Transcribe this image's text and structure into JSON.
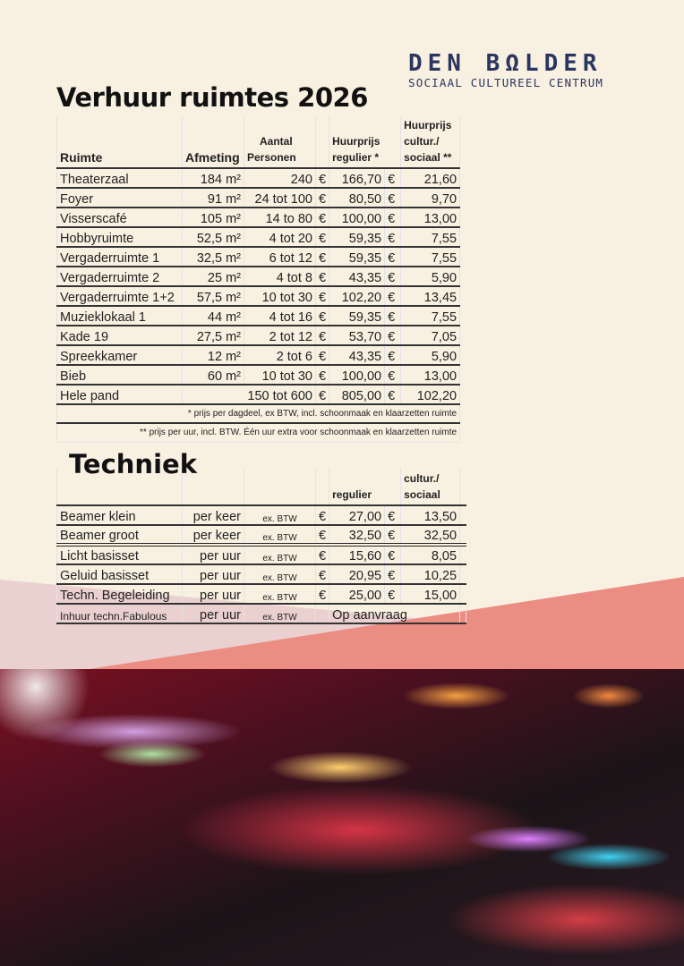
{
  "logo": {
    "name": "DEN BΩLDER",
    "tagline": "SOCIAAL CULTUREEL CENTRUM"
  },
  "title": "Verhuur ruimtes 2026",
  "rooms": {
    "headers": {
      "ruimte": "Ruimte",
      "afmeting": "Afmeting",
      "personen_1": "Aantal",
      "personen_2": "Personen",
      "regulier_1": "Huurprijs",
      "regulier_2": "regulier *",
      "sociaal_1": "Huurprijs",
      "sociaal_2": "cultur./",
      "sociaal_3": "sociaal **"
    },
    "currency": "€",
    "rows": [
      {
        "name": "Theaterzaal",
        "size": "184 m²",
        "persons": "240",
        "regular": "166,70",
        "social": "21,60"
      },
      {
        "name": "Foyer",
        "size": "91 m²",
        "persons": "24 tot 100",
        "regular": "80,50",
        "social": "9,70"
      },
      {
        "name": "Visserscafé",
        "size": "105 m²",
        "persons": "14 to 80",
        "regular": "100,00",
        "social": "13,00"
      },
      {
        "name": "Hobbyruimte",
        "size": "52,5 m²",
        "persons": "4 tot 20",
        "regular": "59,35",
        "social": "7,55"
      },
      {
        "name": "Vergaderruimte 1",
        "size": "32,5 m²",
        "persons": "6 tot 12",
        "regular": "59,35",
        "social": "7,55"
      },
      {
        "name": "Vergaderruimte 2",
        "size": "25 m²",
        "persons": "4 tot 8",
        "regular": "43,35",
        "social": "5,90"
      },
      {
        "name": "Vergaderruimte 1+2",
        "size": "57,5 m²",
        "persons": "10 tot 30",
        "regular": "102,20",
        "social": "13,45"
      },
      {
        "name": "Muzieklokaal 1",
        "size": "44 m²",
        "persons": "4 tot 16",
        "regular": "59,35",
        "social": "7,55"
      },
      {
        "name": "Kade 19",
        "size": "27,5 m²",
        "persons": "2 tot 12",
        "regular": "53,70",
        "social": "7,05"
      },
      {
        "name": "Spreekkamer",
        "size": "12 m²",
        "persons": "2 tot 6",
        "regular": "43,35",
        "social": "5,90"
      },
      {
        "name": "Bieb",
        "size": "60 m²",
        "persons": "10 tot 30",
        "regular": "100,00",
        "social": "13,00"
      },
      {
        "name": "Hele pand",
        "size": "",
        "persons": "150 tot 600",
        "regular": "805,00",
        "social": "102,20"
      }
    ],
    "note1": "* prijs per dagdeel, ex BTW, incl. schoonmaak en klaarzetten ruimte",
    "note2": "** prijs per uur, incl. BTW. Één uur extra voor schoonmaak en klaarzetten ruimte"
  },
  "tech": {
    "title": "Techniek",
    "headers": {
      "regulier": "regulier",
      "sociaal_1": "cultur./",
      "sociaal_2": "sociaal"
    },
    "rows": [
      {
        "name": "Beamer klein",
        "unit": "per keer",
        "tax": "ex. BTW",
        "regular": "27,00",
        "social": "13,50"
      },
      {
        "name": "Beamer groot",
        "unit": "per keer",
        "tax": "ex. BTW",
        "regular": "32,50",
        "social": "32,50"
      },
      {
        "name": "Licht basisset",
        "unit": "per uur",
        "tax": "ex. BTW",
        "regular": "15,60",
        "social": "8,05"
      },
      {
        "name": "Geluid basisset",
        "unit": "per uur",
        "tax": "ex. BTW",
        "regular": "20,95",
        "social": "10,25"
      },
      {
        "name": "Techn. Begeleiding",
        "unit": "per uur",
        "tax": "ex. BTW",
        "regular": "25,00",
        "social": "15,00"
      },
      {
        "name": "Inhuur techn.Fabulous",
        "unit": "per uur",
        "tax": "ex. BTW",
        "on_request": "Op aanvraag"
      }
    ]
  }
}
